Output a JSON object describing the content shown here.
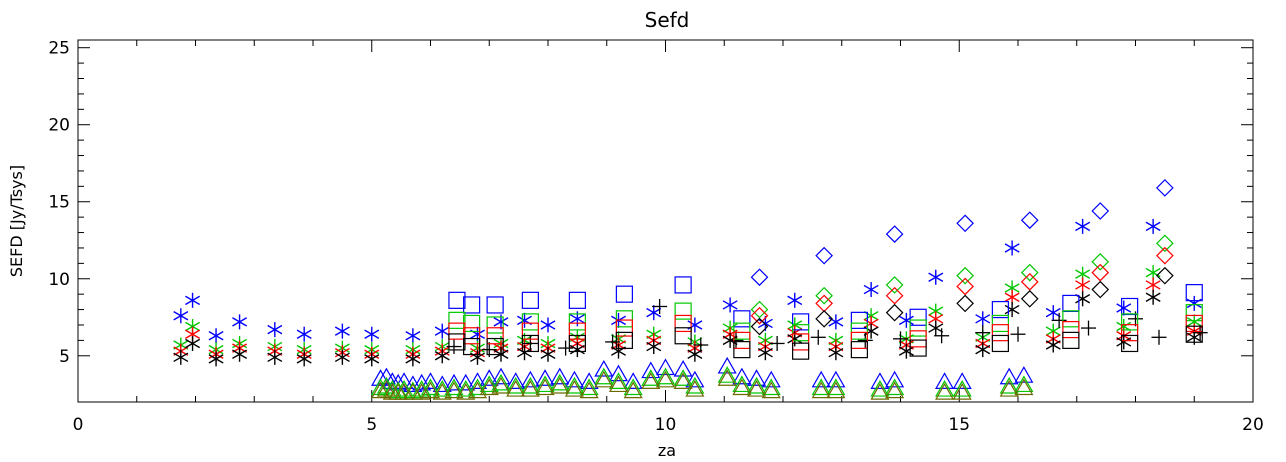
{
  "chart_data": {
    "type": "scatter",
    "title": "Sefd",
    "xlabel": "za",
    "ylabel": "SEFD [Jy/Tsys]",
    "xlim": [
      0,
      20
    ],
    "ylim": [
      2,
      25.5
    ],
    "xticks": [
      0,
      5,
      10,
      15,
      20
    ],
    "yticks": [
      5,
      10,
      15,
      20,
      25
    ],
    "grid": false,
    "colors": {
      "black": "#000000",
      "red": "#ff0000",
      "green": "#00c800",
      "blue": "#0000ff"
    },
    "series": [
      {
        "marker": "asterisk",
        "color": "#0000ff",
        "x": [
          1.75,
          1.95,
          2.35,
          2.75,
          3.35,
          3.85,
          4.5,
          5.0,
          5.7,
          6.2,
          6.8,
          7.2,
          7.6,
          8.0,
          8.5,
          9.2,
          9.8,
          10.5,
          11.1,
          11.7,
          12.2,
          12.9,
          13.5,
          14.1,
          14.6,
          15.4,
          15.9,
          16.6,
          17.1,
          17.8,
          18.3,
          19.0
        ],
        "y": [
          7.6,
          8.6,
          6.3,
          7.2,
          6.7,
          6.4,
          6.6,
          6.4,
          6.3,
          6.6,
          6.4,
          7.2,
          7.3,
          7.0,
          7.4,
          7.3,
          7.8,
          7.0,
          8.3,
          7.1,
          8.6,
          7.2,
          9.3,
          7.3,
          10.1,
          7.4,
          12.0,
          7.8,
          13.4,
          8.1,
          13.4,
          8.4
        ]
      },
      {
        "marker": "asterisk",
        "color": "#00c800",
        "x": [
          1.75,
          1.95,
          2.35,
          2.75,
          3.35,
          3.85,
          4.5,
          5.0,
          5.7,
          6.2,
          6.8,
          7.2,
          7.6,
          8.0,
          8.5,
          9.2,
          9.8,
          10.5,
          11.1,
          11.7,
          12.2,
          12.9,
          13.5,
          14.1,
          14.6,
          15.4,
          15.9,
          16.6,
          17.1,
          17.8,
          18.3,
          19.0
        ],
        "y": [
          5.7,
          6.9,
          5.4,
          5.8,
          5.6,
          5.4,
          5.5,
          5.4,
          5.4,
          5.6,
          5.5,
          5.8,
          6.0,
          5.8,
          6.2,
          6.1,
          6.4,
          5.9,
          6.8,
          6.0,
          7.0,
          6.0,
          7.6,
          6.1,
          7.9,
          6.2,
          9.4,
          6.6,
          10.3,
          6.9,
          10.4,
          7.2
        ]
      },
      {
        "marker": "asterisk",
        "color": "#ff0000",
        "x": [
          1.75,
          1.95,
          2.35,
          2.75,
          3.35,
          3.85,
          4.5,
          5.0,
          5.7,
          6.2,
          6.8,
          7.2,
          7.6,
          8.0,
          8.5,
          9.2,
          9.8,
          10.5,
          11.1,
          11.7,
          12.2,
          12.9,
          13.5,
          14.1,
          14.6,
          15.4,
          15.9,
          16.6,
          17.1,
          17.8,
          18.3,
          19.0
        ],
        "y": [
          5.3,
          6.4,
          5.1,
          5.5,
          5.3,
          5.1,
          5.2,
          5.1,
          5.1,
          5.3,
          5.2,
          5.5,
          5.6,
          5.5,
          5.8,
          5.7,
          6.0,
          5.5,
          6.4,
          5.6,
          6.5,
          5.6,
          7.1,
          5.7,
          7.4,
          5.8,
          8.8,
          6.1,
          9.6,
          6.3,
          9.6,
          6.6
        ]
      },
      {
        "marker": "asterisk",
        "color": "#000000",
        "x": [
          1.75,
          1.95,
          2.35,
          2.75,
          3.35,
          3.85,
          4.5,
          5.0,
          5.7,
          6.2,
          6.8,
          7.2,
          7.6,
          8.0,
          8.5,
          9.2,
          9.8,
          10.5,
          11.1,
          11.7,
          12.2,
          12.9,
          13.5,
          14.1,
          14.6,
          15.4,
          15.9,
          16.6,
          17.1,
          17.8,
          18.3,
          19.0
        ],
        "y": [
          4.9,
          5.8,
          4.8,
          5.1,
          4.9,
          4.8,
          4.9,
          4.8,
          4.8,
          5.0,
          4.9,
          5.1,
          5.2,
          5.1,
          5.4,
          5.3,
          5.6,
          5.1,
          6.0,
          5.2,
          6.1,
          5.2,
          6.6,
          5.3,
          6.8,
          5.4,
          8.0,
          5.7,
          8.7,
          5.9,
          8.8,
          6.2
        ]
      },
      {
        "marker": "plus",
        "color": "#000000",
        "x": [
          6.4,
          7.0,
          7.7,
          8.3,
          9.1,
          9.9,
          10.6,
          11.2,
          11.9,
          12.6,
          13.4,
          14.0,
          14.7,
          15.4,
          16.0,
          16.7,
          17.2,
          18.0,
          18.4,
          19.1
        ],
        "y": [
          5.6,
          5.4,
          5.8,
          5.5,
          5.9,
          8.2,
          5.7,
          6.0,
          5.8,
          6.2,
          6.0,
          6.1,
          6.3,
          6.5,
          6.4,
          7.3,
          6.8,
          7.4,
          6.2,
          6.5
        ]
      },
      {
        "marker": "square",
        "color": "#0000ff",
        "x": [
          6.45,
          6.7,
          7.1,
          7.7,
          8.5,
          9.3,
          10.3,
          11.3,
          12.3,
          13.3,
          14.3,
          15.7,
          16.9,
          17.9,
          19.0
        ],
        "y": [
          8.6,
          8.3,
          8.3,
          8.6,
          8.6,
          9.0,
          9.6,
          7.4,
          7.2,
          7.3,
          7.5,
          8.0,
          8.4,
          8.2,
          9.1
        ]
      },
      {
        "marker": "square",
        "color": "#00c800",
        "x": [
          6.45,
          6.7,
          7.1,
          7.7,
          8.5,
          9.3,
          10.3,
          11.3,
          12.3,
          13.3,
          14.3,
          15.7,
          16.9,
          17.9,
          19.0
        ],
        "y": [
          7.3,
          7.1,
          7.0,
          7.2,
          7.2,
          7.4,
          7.9,
          6.6,
          6.5,
          6.6,
          6.8,
          7.1,
          7.4,
          7.2,
          7.8
        ]
      },
      {
        "marker": "square",
        "color": "#ff0000",
        "x": [
          6.45,
          6.7,
          7.1,
          7.7,
          8.5,
          9.3,
          10.3,
          11.3,
          12.3,
          13.3,
          14.3,
          15.7,
          16.9,
          17.9,
          19.0
        ],
        "y": [
          6.6,
          6.3,
          6.3,
          6.6,
          6.6,
          6.8,
          7.1,
          6.0,
          5.9,
          6.0,
          6.1,
          6.5,
          6.7,
          6.5,
          7.1
        ]
      },
      {
        "marker": "square",
        "color": "#000000",
        "x": [
          6.45,
          6.7,
          7.1,
          7.7,
          8.5,
          9.3,
          10.3,
          11.3,
          12.3,
          13.3,
          14.3,
          15.7,
          16.9,
          17.9,
          19.0
        ],
        "y": [
          5.9,
          5.6,
          5.6,
          5.8,
          5.8,
          6.0,
          6.3,
          5.4,
          5.3,
          5.4,
          5.5,
          5.8,
          6.0,
          5.8,
          6.4
        ]
      },
      {
        "marker": "diamond",
        "color": "#0000ff",
        "x": [
          11.6,
          12.7,
          13.9,
          15.1,
          16.2,
          17.4,
          18.5
        ],
        "y": [
          10.1,
          11.5,
          12.9,
          13.6,
          13.8,
          14.4,
          15.9
        ]
      },
      {
        "marker": "diamond",
        "color": "#00c800",
        "x": [
          11.6,
          12.7,
          13.9,
          15.1,
          16.2,
          17.4,
          18.5
        ],
        "y": [
          8.0,
          8.9,
          9.6,
          10.2,
          10.4,
          11.1,
          12.3
        ]
      },
      {
        "marker": "diamond",
        "color": "#ff0000",
        "x": [
          11.6,
          12.7,
          13.9,
          15.1,
          16.2,
          17.4,
          18.5
        ],
        "y": [
          7.6,
          8.4,
          8.9,
          9.5,
          9.8,
          10.4,
          11.5
        ]
      },
      {
        "marker": "diamond",
        "color": "#000000",
        "x": [
          11.6,
          12.7,
          13.9,
          15.1,
          16.2,
          17.4,
          18.5
        ],
        "y": [
          6.9,
          7.4,
          7.8,
          8.4,
          8.7,
          9.3,
          10.2
        ]
      },
      {
        "marker": "triangle",
        "color": "#0000ff",
        "x": [
          5.15,
          5.25,
          5.35,
          5.45,
          5.55,
          5.7,
          5.85,
          6.0,
          6.2,
          6.4,
          6.6,
          6.8,
          7.0,
          7.2,
          7.45,
          7.7,
          7.95,
          8.2,
          8.45,
          8.7,
          8.95,
          9.2,
          9.45,
          9.75,
          10.0,
          10.3,
          10.5,
          11.05,
          11.3,
          11.55,
          11.8,
          12.65,
          12.9,
          13.65,
          13.9,
          14.75,
          15.05,
          15.85,
          16.1
        ],
        "y": [
          3.5,
          3.6,
          3.3,
          3.2,
          3.3,
          3.1,
          3.2,
          3.3,
          3.1,
          3.2,
          3.2,
          3.3,
          3.5,
          3.6,
          3.3,
          3.4,
          3.5,
          3.6,
          3.4,
          3.3,
          4.1,
          3.8,
          3.3,
          4.0,
          4.2,
          4.1,
          3.4,
          4.3,
          3.6,
          3.5,
          3.4,
          3.4,
          3.4,
          3.3,
          3.4,
          3.3,
          3.3,
          3.6,
          3.7
        ]
      },
      {
        "marker": "triangle",
        "color": "#00c800",
        "x": [
          5.15,
          5.25,
          5.35,
          5.45,
          5.55,
          5.7,
          5.85,
          6.0,
          6.2,
          6.4,
          6.6,
          6.8,
          7.0,
          7.2,
          7.45,
          7.7,
          7.95,
          8.2,
          8.45,
          8.7,
          8.95,
          9.2,
          9.45,
          9.75,
          10.0,
          10.3,
          10.5,
          11.05,
          11.3,
          11.55,
          11.8,
          12.65,
          12.9,
          13.65,
          13.9,
          14.75,
          15.05,
          15.85,
          16.1
        ],
        "y": [
          2.9,
          3.0,
          2.8,
          2.7,
          2.8,
          2.7,
          2.8,
          2.9,
          2.8,
          2.9,
          2.8,
          2.9,
          3.1,
          3.2,
          3.0,
          3.0,
          3.1,
          3.2,
          3.0,
          2.9,
          3.6,
          3.3,
          2.9,
          3.5,
          3.6,
          3.5,
          3.0,
          3.7,
          3.1,
          3.0,
          2.9,
          2.9,
          2.9,
          2.8,
          2.9,
          2.8,
          2.8,
          3.0,
          3.1
        ]
      },
      {
        "marker": "triangle",
        "color": "#6b6b00",
        "x": [
          5.15,
          5.25,
          5.35,
          5.45,
          5.55,
          5.7,
          5.85,
          6.0,
          6.2,
          6.4,
          6.6,
          6.8,
          7.0,
          7.2,
          7.45,
          7.7,
          7.95,
          8.2,
          8.45,
          8.7,
          8.95,
          9.2,
          9.45,
          9.75,
          10.0,
          10.3,
          10.5,
          11.05,
          11.3,
          11.55,
          11.8,
          12.65,
          12.9,
          13.65,
          13.9,
          14.75,
          15.05,
          15.85,
          16.1
        ],
        "y": [
          2.7,
          2.8,
          2.6,
          2.6,
          2.6,
          2.6,
          2.6,
          2.7,
          2.6,
          2.7,
          2.6,
          2.7,
          2.9,
          3.0,
          2.8,
          2.8,
          2.9,
          3.0,
          2.8,
          2.7,
          3.4,
          3.1,
          2.7,
          3.3,
          3.4,
          3.3,
          2.8,
          3.5,
          2.9,
          2.8,
          2.7,
          2.7,
          2.7,
          2.6,
          2.7,
          2.6,
          2.6,
          2.8,
          2.9
        ]
      }
    ]
  }
}
